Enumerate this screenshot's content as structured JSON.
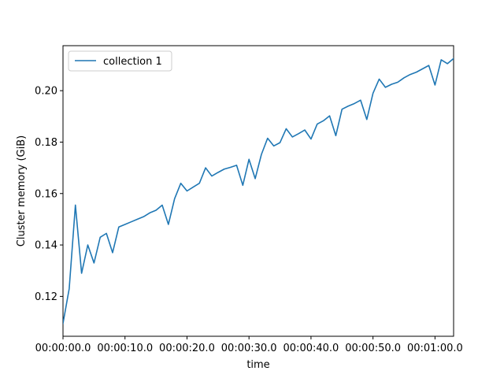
{
  "chart_data": {
    "type": "line",
    "xlabel": "time",
    "ylabel": "Cluster memory (GiB)",
    "x_unit": "seconds",
    "xlim": [
      0,
      63
    ],
    "ylim": [
      0.1045,
      0.2175
    ],
    "x_ticks": [
      0,
      10,
      20,
      30,
      40,
      50,
      60
    ],
    "x_tick_labels": [
      "00:00:00.0",
      "00:00:10.0",
      "00:00:20.0",
      "00:00:30.0",
      "00:00:40.0",
      "00:00:50.0",
      "00:01:00.0"
    ],
    "y_ticks": [
      0.12,
      0.14,
      0.16,
      0.18,
      0.2
    ],
    "y_tick_labels": [
      "0.12",
      "0.14",
      "0.16",
      "0.18",
      "0.20"
    ],
    "grid": false,
    "legend_position": "top-left",
    "series": [
      {
        "name": "collection 1",
        "color": "#1f77b4",
        "x": [
          0,
          1,
          2,
          3,
          4,
          5,
          6,
          7,
          8,
          9,
          10,
          11,
          12,
          13,
          14,
          15,
          16,
          17,
          18,
          19,
          20,
          21,
          22,
          23,
          24,
          25,
          26,
          27,
          28,
          29,
          30,
          31,
          32,
          33,
          34,
          35,
          36,
          37,
          38,
          39,
          40,
          41,
          42,
          43,
          44,
          45,
          46,
          47,
          48,
          49,
          50,
          51,
          52,
          53,
          54,
          55,
          56,
          57,
          58,
          59,
          60,
          61,
          62,
          63
        ],
        "y": [
          0.1095,
          0.123,
          0.1555,
          0.129,
          0.14,
          0.133,
          0.143,
          0.1445,
          0.137,
          0.147,
          0.148,
          0.149,
          0.15,
          0.151,
          0.1525,
          0.1535,
          0.1555,
          0.148,
          0.158,
          0.164,
          0.161,
          0.1625,
          0.164,
          0.17,
          0.1668,
          0.1682,
          0.1695,
          0.1702,
          0.171,
          0.1632,
          0.1733,
          0.1658,
          0.1752,
          0.1815,
          0.1785,
          0.1798,
          0.1852,
          0.182,
          0.1833,
          0.1847,
          0.1812,
          0.187,
          0.1883,
          0.1902,
          0.1825,
          0.1928,
          0.194,
          0.195,
          0.1963,
          0.1888,
          0.199,
          0.2045,
          0.2013,
          0.2025,
          0.2033,
          0.205,
          0.2063,
          0.2072,
          0.2085,
          0.2098,
          0.2022,
          0.212,
          0.2105,
          0.2125
        ]
      }
    ]
  }
}
